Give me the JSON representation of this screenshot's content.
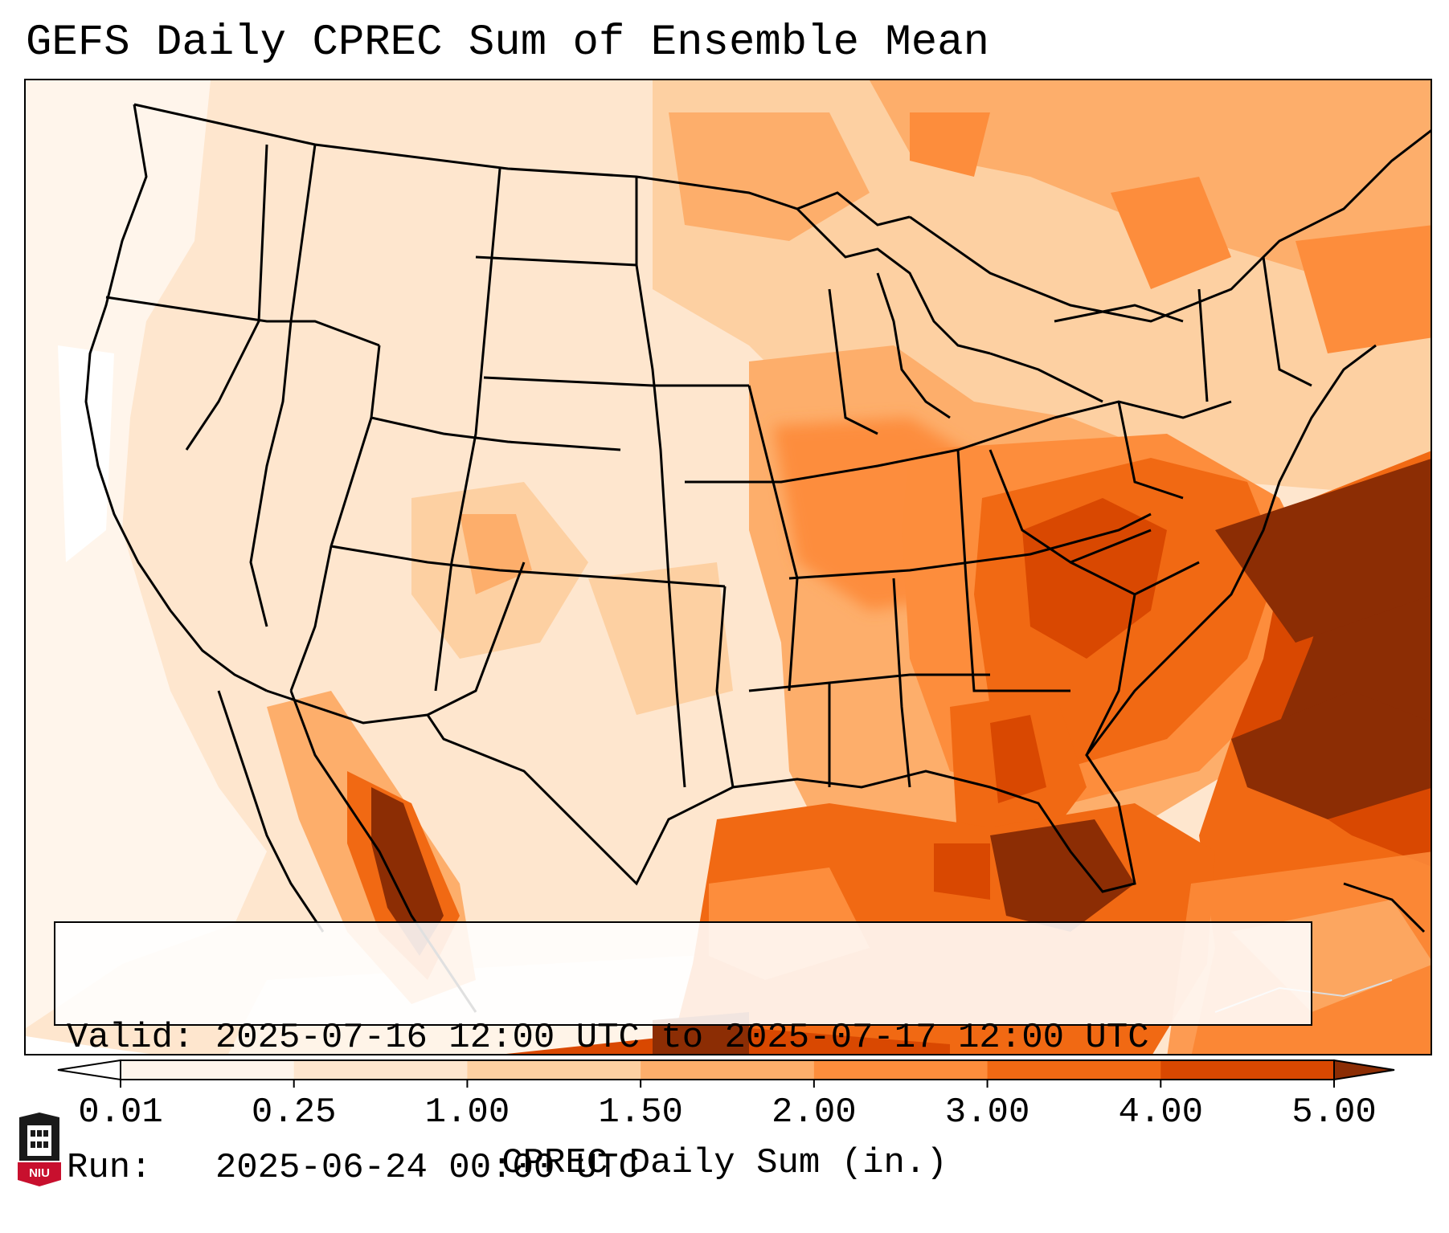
{
  "title": "GEFS Daily CPREC Sum of Ensemble Mean",
  "info_box": {
    "valid_label": "Valid:",
    "valid_value": "2025-07-16 12:00 UTC to 2025-07-17 12:00 UTC",
    "run_label": "Run:",
    "run_value": "2025-06-24 00:00 UTC"
  },
  "colorbar": {
    "label": "CPREC Daily Sum (in.)",
    "ticks": [
      "0.01",
      "0.25",
      "1.00",
      "1.50",
      "2.00",
      "3.00",
      "4.00",
      "5.00"
    ],
    "colors": [
      "#fff5eb",
      "#fee6ce",
      "#fdd0a2",
      "#fdae6b",
      "#fd8d3c",
      "#f16913",
      "#d94801",
      "#8c2d04"
    ],
    "under_color": "#ffffff",
    "over_color": "#8c2d04",
    "extend": "both"
  },
  "logo": {
    "text": "NIU",
    "colors": {
      "shield": "#1a1a1a",
      "banner": "#c8102e"
    }
  },
  "map": {
    "projection": "Lambert conformal, continental US",
    "border_color": "#000000",
    "field": "GEFS ensemble mean daily convective precipitation"
  }
}
